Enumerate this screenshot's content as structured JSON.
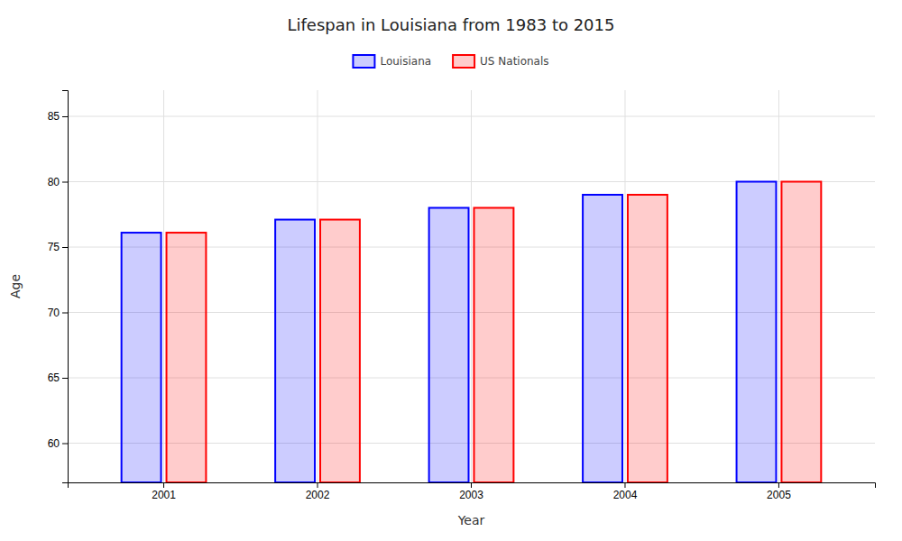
{
  "chart_data": {
    "type": "bar",
    "title": "Lifespan in Louisiana from 1983 to 2015",
    "xlabel": "Year",
    "ylabel": "Age",
    "categories": [
      "2001",
      "2002",
      "2003",
      "2004",
      "2005"
    ],
    "series": [
      {
        "name": "Louisiana",
        "color": "#0000ff",
        "values": [
          76.1,
          77.1,
          78.0,
          79.0,
          80.0
        ]
      },
      {
        "name": "US Nationals",
        "color": "#ff0000",
        "values": [
          76.1,
          77.1,
          78.0,
          79.0,
          80.0
        ]
      }
    ],
    "ylim": [
      57,
      87
    ],
    "yticks": [
      60,
      65,
      70,
      75,
      80,
      85
    ],
    "grid": true,
    "legend": "top"
  }
}
